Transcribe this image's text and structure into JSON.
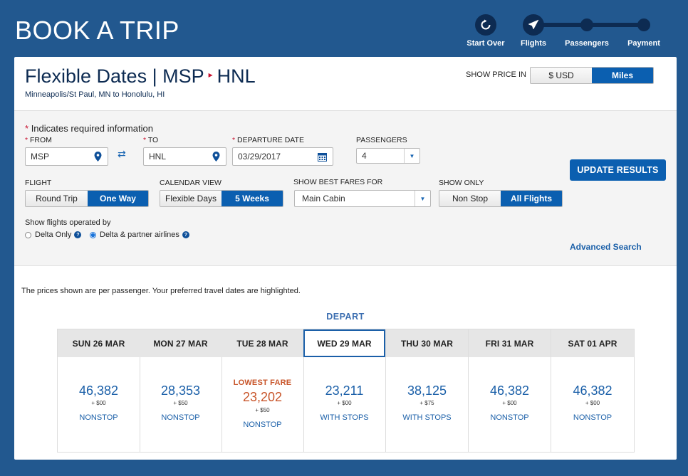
{
  "header": {
    "title": "BOOK A TRIP"
  },
  "steps": [
    {
      "label": "Start Over",
      "icon": "refresh-icon"
    },
    {
      "label": "Flights",
      "icon": "plane-icon"
    },
    {
      "label": "Passengers"
    },
    {
      "label": "Payment"
    }
  ],
  "route": {
    "title_prefix": "Flexible Dates | MSP",
    "arrow": "▸",
    "destination": "HNL",
    "subtitle": "Minneapolis/St Paul, MN to Honolulu, HI"
  },
  "price_toggle": {
    "label": "SHOW PRICE IN",
    "options": [
      "$ USD",
      "Miles"
    ],
    "selected": "Miles"
  },
  "form": {
    "required_note": "Indicates required information",
    "from": {
      "label": "FROM",
      "value": "MSP"
    },
    "to": {
      "label": "TO",
      "value": "HNL"
    },
    "departure": {
      "label": "DEPARTURE DATE",
      "value": "03/29/2017"
    },
    "passengers": {
      "label": "PASSENGERS",
      "value": "4"
    },
    "flight": {
      "label": "FLIGHT",
      "options": [
        "Round Trip",
        "One Way"
      ],
      "selected": "One Way"
    },
    "calendar": {
      "label": "CALENDAR VIEW",
      "options": [
        "Flexible Days",
        "5 Weeks"
      ],
      "selected": "5 Weeks"
    },
    "fares": {
      "label": "SHOW BEST FARES FOR",
      "value": "Main Cabin"
    },
    "show_only": {
      "label": "SHOW ONLY",
      "options": [
        "Non Stop",
        "All Flights"
      ],
      "selected": "All Flights"
    },
    "operated": {
      "label": "Show flights operated by",
      "options": [
        "Delta Only",
        "Delta & partner airlines"
      ],
      "selected": "Delta & partner airlines"
    },
    "update_button": "UPDATE RESULTS",
    "advanced_link": "Advanced Search"
  },
  "results": {
    "note": "The prices shown are per passenger. Your preferred travel dates are highlighted.",
    "depart_label": "DEPART",
    "lowest_label": "LOWEST FARE",
    "days": [
      {
        "date": "SUN 26 MAR",
        "miles": "46,382",
        "fee": "+ $00",
        "stops": "NONSTOP"
      },
      {
        "date": "MON 27 MAR",
        "miles": "28,353",
        "fee": "+ $50",
        "stops": "NONSTOP"
      },
      {
        "date": "TUE 28 MAR",
        "miles": "23,202",
        "fee": "+ $50",
        "stops": "NONSTOP",
        "lowest": true
      },
      {
        "date": "WED 29 MAR",
        "miles": "23,211",
        "fee": "+ $00",
        "stops": "WITH STOPS",
        "selected": true
      },
      {
        "date": "THU 30 MAR",
        "miles": "38,125",
        "fee": "+ $75",
        "stops": "WITH STOPS"
      },
      {
        "date": "FRI 31 MAR",
        "miles": "46,382",
        "fee": "+ $00",
        "stops": "NONSTOP"
      },
      {
        "date": "SAT 01 APR",
        "miles": "46,382",
        "fee": "+ $00",
        "stops": "NONSTOP"
      }
    ]
  },
  "colors": {
    "brand_blue": "#22588f",
    "navy": "#0d2b52",
    "accent": "#0b5fb0",
    "lowest": "#c8552a",
    "arrow_red": "#c8102e"
  }
}
